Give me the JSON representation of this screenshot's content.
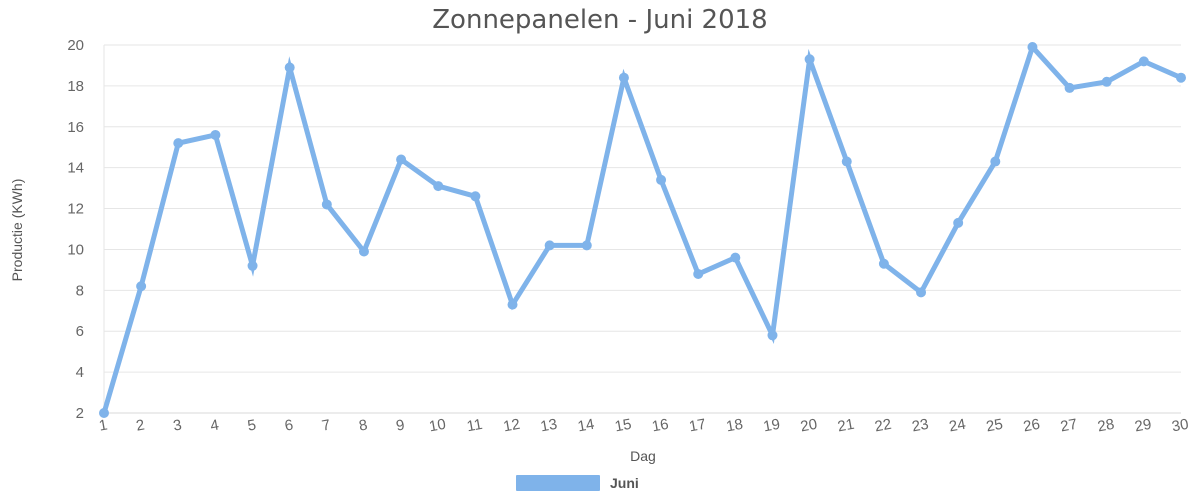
{
  "chart_data": {
    "type": "line",
    "title": "Zonnepanelen - Juni 2018",
    "xlabel": "Dag",
    "ylabel": "Productie (KWh)",
    "categories": [
      "1",
      "2",
      "3",
      "4",
      "5",
      "6",
      "7",
      "8",
      "9",
      "10",
      "11",
      "12",
      "13",
      "14",
      "15",
      "16",
      "17",
      "18",
      "19",
      "20",
      "21",
      "22",
      "23",
      "24",
      "25",
      "26",
      "27",
      "28",
      "29",
      "30"
    ],
    "ylim": [
      2,
      20
    ],
    "yticks": [
      "2",
      "4",
      "6",
      "8",
      "10",
      "12",
      "14",
      "16",
      "18",
      "20"
    ],
    "grid": true,
    "legend_position": "bottom",
    "series": [
      {
        "name": "Juni",
        "color": "#7fb3ea",
        "values": [
          2.0,
          8.2,
          15.2,
          15.6,
          9.2,
          18.9,
          12.2,
          9.9,
          14.4,
          13.1,
          12.6,
          7.3,
          10.2,
          10.2,
          18.4,
          13.4,
          8.8,
          9.6,
          5.8,
          19.3,
          14.3,
          9.3,
          7.9,
          11.3,
          14.3,
          19.9,
          17.9,
          18.2,
          19.2,
          18.4
        ]
      }
    ]
  }
}
